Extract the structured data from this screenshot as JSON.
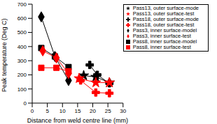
{
  "chart_data": {
    "type": "line",
    "x_label": "Distance from weld centre line (mm)",
    "y_label": "Peak temperature (Deg C)",
    "xlim": [
      0,
      30
    ],
    "xticks": [
      0,
      5,
      10,
      15,
      20,
      25,
      30
    ],
    "ylim": [
      0,
      700
    ],
    "yticks": [
      0,
      100,
      200,
      300,
      400,
      500,
      600,
      700
    ],
    "grid": false,
    "legend": "upper right",
    "series": [
      {
        "name": "Pass3, inner surface-model",
        "color": "#000000",
        "marker": "diamond",
        "x": [
          3,
          7.5,
          12
        ],
        "values": [
          610,
          330,
          160
        ]
      },
      {
        "name": "Pass8, inner surface-model",
        "color": "#000000",
        "marker": "square",
        "x": [
          3,
          7.5,
          12
        ],
        "values": [
          390,
          330,
          255
        ]
      },
      {
        "name": "Pass13, outer surface-mode",
        "color": "#000000",
        "marker": "star",
        "x": [
          17,
          21,
          25.5
        ],
        "values": [
          195,
          185,
          145
        ]
      },
      {
        "name": "Pass18, outer surface-mode",
        "color": "#000000",
        "marker": "cross",
        "x": [
          19,
          21.5,
          25.5
        ],
        "values": [
          270,
          200,
          140
        ]
      },
      {
        "name": "Pass3, inner surface-test",
        "color": "#ff0000",
        "marker": "diamond",
        "x": [
          3.5,
          8,
          12
        ],
        "values": [
          370,
          320,
          210
        ]
      },
      {
        "name": "Pass8, inner surface-test",
        "color": "#ff0000",
        "marker": "square",
        "x": [
          3,
          8,
          12
        ],
        "values": [
          250,
          250,
          225
        ]
      },
      {
        "name": "Pass13, outer surface-test",
        "color": "#ff0000",
        "marker": "star",
        "x": [
          15.5,
          21,
          25.5
        ],
        "values": [
          175,
          145,
          145
        ]
      },
      {
        "name": "Pass18, outer surface-test",
        "color": "#ff0000",
        "marker": "cross",
        "x": [
          16,
          21,
          25.5
        ],
        "values": [
          160,
          75,
          70
        ]
      }
    ]
  }
}
